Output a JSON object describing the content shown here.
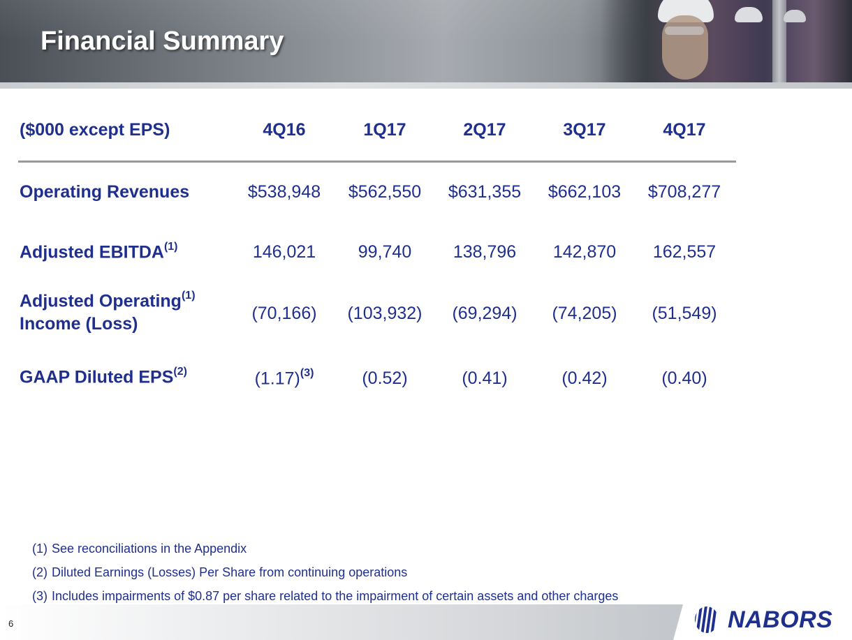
{
  "header": {
    "title": "Financial Summary"
  },
  "table": {
    "label_header": "($000 except EPS)",
    "columns": [
      "4Q16",
      "1Q17",
      "2Q17",
      "3Q17",
      "4Q17"
    ],
    "rows": [
      {
        "label": "Operating Revenues",
        "label_line2": "",
        "label_note": "",
        "values": [
          "$538,948",
          "$562,550",
          "$631,355",
          "$662,103",
          "$708,277"
        ],
        "value_notes": [
          "",
          "",
          "",
          "",
          ""
        ]
      },
      {
        "label": "Adjusted EBITDA",
        "label_line2": "",
        "label_note": "(1)",
        "values": [
          "146,021",
          "99,740",
          "138,796",
          "142,870",
          "162,557"
        ],
        "value_notes": [
          "",
          "",
          "",
          "",
          ""
        ]
      },
      {
        "label": "Adjusted Operating",
        "label_line2": "Income (Loss)",
        "label_note": "(1)",
        "values": [
          "(70,166)",
          "(103,932)",
          "(69,294)",
          "(74,205)",
          "(51,549)"
        ],
        "value_notes": [
          "",
          "",
          "",
          "",
          ""
        ]
      },
      {
        "label": "GAAP Diluted EPS",
        "label_line2": "",
        "label_note": "(2)",
        "values": [
          "(1.17)",
          "(0.52)",
          "(0.41)",
          "(0.42)",
          "(0.40)"
        ],
        "value_notes": [
          "(3)",
          "",
          "",
          "",
          ""
        ]
      }
    ]
  },
  "footnotes": [
    {
      "num": "(1)",
      "text": "See reconciliations in the Appendix"
    },
    {
      "num": "(2)",
      "text": "Diluted Earnings (Losses) Per Share from continuing operations"
    },
    {
      "num": "(3)",
      "text": "Includes impairments of $0.87 per share related to the impairment of certain assets and other charges"
    }
  ],
  "footer": {
    "page_number": "6",
    "logo_text": "NABORS"
  },
  "colors": {
    "text_blue": "#1f2f8e",
    "rule_gray": "#9a9a9a"
  },
  "icons": {
    "logo_mark": "nabors-logo-mark-icon"
  }
}
